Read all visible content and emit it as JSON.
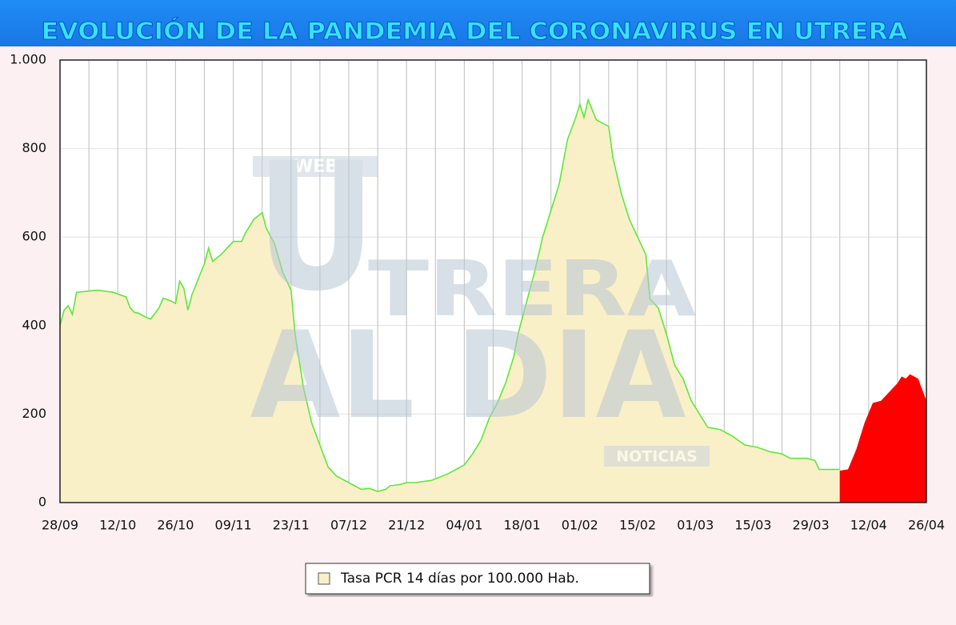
{
  "chart_data": {
    "type": "area",
    "title": "EVOLUCIÓN DE LA PANDEMIA DEL CORONAVIRUS EN UTRERA",
    "watermark": [
      "WEB",
      "U",
      "TRERA",
      "AL DIA",
      "NOTICIAS"
    ],
    "x": [
      "28/09",
      "29/09",
      "30/09",
      "01/10",
      "02/10",
      "05/10",
      "07/10",
      "11/10",
      "13/10",
      "14/10",
      "15/10",
      "16/10",
      "17/10",
      "19/10",
      "20/10",
      "22/10",
      "23/10",
      "25/10",
      "26/10",
      "27/10",
      "28/10",
      "29/10",
      "30/10",
      "02/11",
      "03/11",
      "04/11",
      "06/11",
      "09/11",
      "11/11",
      "12/11",
      "14/11",
      "16/11",
      "17/11",
      "19/11",
      "21/11",
      "23/11",
      "24/11",
      "26/11",
      "28/11",
      "30/11",
      "02/12",
      "04/12",
      "06/12",
      "08/12",
      "10/12",
      "12/12",
      "14/12",
      "16/12",
      "17/12",
      "19/12",
      "21/12",
      "23/12",
      "27/12",
      "31/12",
      "04/01",
      "06/01",
      "08/01",
      "10/01",
      "12/01",
      "14/01",
      "16/01",
      "17/01",
      "19/01",
      "21/01",
      "23/01",
      "25/01",
      "27/01",
      "29/01",
      "31/01",
      "01/02",
      "02/02",
      "03/02",
      "05/02",
      "08/02",
      "09/02",
      "11/02",
      "13/02",
      "15/02",
      "17/02",
      "18/02",
      "20/02",
      "22/02",
      "24/02",
      "26/02",
      "28/02",
      "02/03",
      "04/03",
      "07/03",
      "10/03",
      "13/03",
      "16/03",
      "19/03",
      "22/03",
      "24/03",
      "28/03",
      "30/03",
      "31/03",
      "05/04",
      "07/04",
      "09/04",
      "11/04",
      "13/04",
      "15/04",
      "17/04",
      "19/04",
      "20/04",
      "21/04",
      "22/04",
      "24/04",
      "26/04"
    ],
    "series": [
      {
        "name": "Tasa PCR 14 días por 100.000 Hab.",
        "color": "#faf0c8",
        "line_color": "#5de83a",
        "values": [
          400,
          435,
          445,
          425,
          475,
          478,
          480,
          475,
          468,
          465,
          440,
          430,
          428,
          418,
          415,
          440,
          462,
          455,
          450,
          500,
          485,
          435,
          470,
          540,
          575,
          545,
          560,
          590,
          590,
          610,
          640,
          655,
          620,
          585,
          520,
          480,
          380,
          260,
          180,
          130,
          80,
          60,
          50,
          40,
          30,
          32,
          25,
          30,
          38,
          40,
          45,
          45,
          50,
          65,
          85,
          110,
          140,
          190,
          225,
          270,
          330,
          380,
          450,
          520,
          600,
          660,
          720,
          820,
          870,
          900,
          870,
          910,
          865,
          850,
          780,
          700,
          640,
          600,
          560,
          460,
          440,
          380,
          310,
          280,
          230,
          200,
          170,
          165,
          150,
          130,
          125,
          115,
          110,
          100,
          100,
          95,
          75,
          75,
          null,
          null,
          null,
          null,
          null,
          null,
          null,
          null,
          null,
          null,
          null,
          null
        ]
      },
      {
        "color": "#ff0000",
        "values": [
          null,
          null,
          null,
          null,
          null,
          null,
          null,
          null,
          null,
          null,
          null,
          null,
          null,
          null,
          null,
          null,
          null,
          null,
          null,
          null,
          null,
          null,
          null,
          null,
          null,
          null,
          null,
          null,
          null,
          null,
          null,
          null,
          null,
          null,
          null,
          null,
          null,
          null,
          null,
          null,
          null,
          null,
          null,
          null,
          null,
          null,
          null,
          null,
          null,
          null,
          null,
          null,
          null,
          null,
          null,
          null,
          null,
          null,
          null,
          null,
          null,
          null,
          null,
          null,
          null,
          null,
          null,
          null,
          null,
          null,
          null,
          null,
          null,
          null,
          null,
          null,
          null,
          null,
          null,
          null,
          null,
          null,
          null,
          null,
          null,
          null,
          null,
          null,
          null,
          null,
          null,
          null,
          null,
          null,
          null,
          null,
          null,
          72,
          75,
          120,
          180,
          225,
          230,
          250,
          270,
          285,
          280,
          290,
          280,
          230
        ]
      }
    ],
    "xlim": [
      "28/09",
      "26/04"
    ],
    "xticks": [
      "28/09",
      "12/10",
      "26/10",
      "09/11",
      "23/11",
      "07/12",
      "21/12",
      "04/01",
      "18/01",
      "01/02",
      "15/02",
      "01/03",
      "15/03",
      "29/03",
      "12/04",
      "26/04"
    ],
    "minor_xticks": [
      "05/10",
      "19/10",
      "02/11",
      "16/11",
      "30/11",
      "14/12",
      "28/12",
      "11/01",
      "25/01",
      "08/02",
      "22/02",
      "08/03",
      "22/03",
      "05/04",
      "19/04"
    ],
    "ylim": [
      0,
      1000
    ],
    "yticks": [
      0,
      200,
      400,
      600,
      800,
      {
        "value": 1000,
        "label": "1.000"
      }
    ],
    "grid": true
  }
}
